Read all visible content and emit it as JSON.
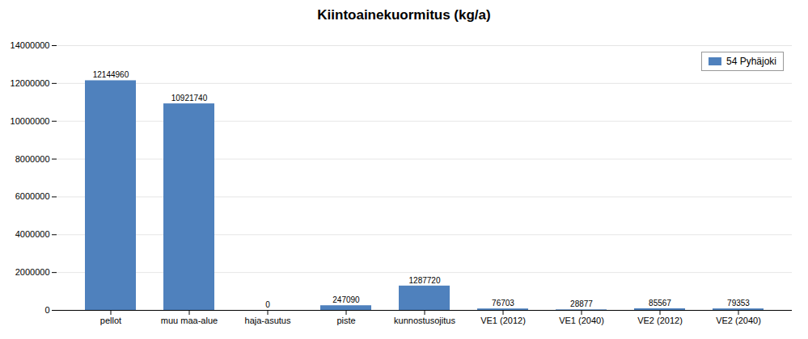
{
  "chart_data": {
    "type": "bar",
    "title": "Kiintoainekuormitus (kg/a)",
    "categories": [
      "pellot",
      "muu maa-alue",
      "haja-asutus",
      "piste",
      "kunnostusojitus",
      "VE1 (2012)",
      "VE1 (2040)",
      "VE2 (2012)",
      "VE2 (2040)"
    ],
    "series": [
      {
        "name": "54 Pyhäjoki",
        "color": "#4f81bd",
        "values": [
          12144960,
          10921740,
          0,
          247090,
          1287720,
          76703,
          28877,
          85567,
          79353
        ]
      }
    ],
    "ylim": [
      0,
      14000000
    ],
    "yticks": [
      0,
      2000000,
      4000000,
      6000000,
      8000000,
      10000000,
      12000000,
      14000000
    ],
    "grid": true,
    "legend": "upper right",
    "data_labels": true
  }
}
